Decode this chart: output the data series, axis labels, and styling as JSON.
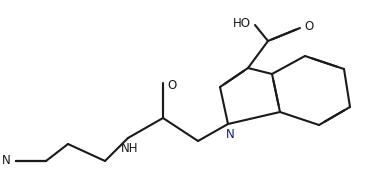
{
  "bg_color": "#ffffff",
  "line_color": "#1a1a1a",
  "lw": 1.5,
  "doff": 0.055,
  "figsize": [
    3.7,
    1.96
  ],
  "dpi": 100,
  "xlim": [
    0,
    370
  ],
  "ylim": [
    0,
    196
  ]
}
